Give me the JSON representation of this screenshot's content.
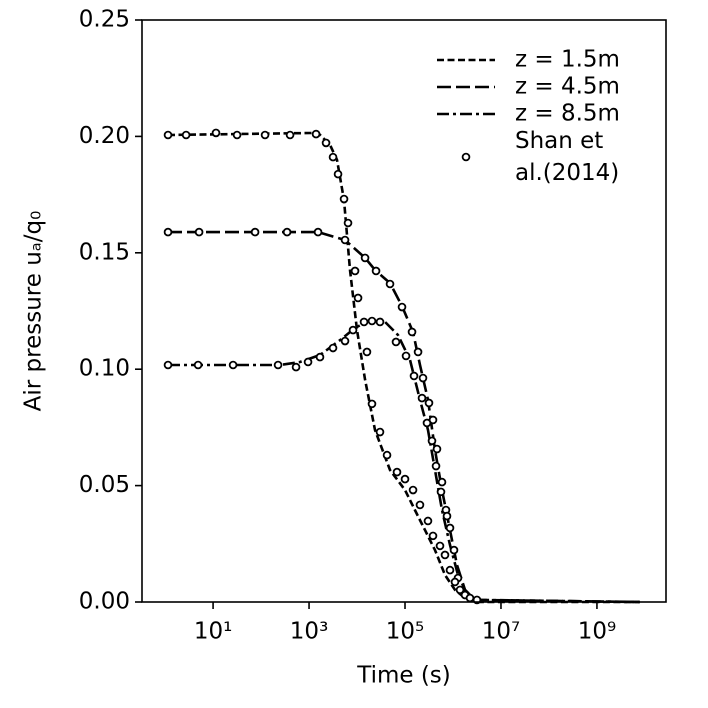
{
  "chart_data": {
    "type": "line",
    "xlabel": "Time (s)",
    "ylabel": "Air pressure uₐ/q₀",
    "xscale": "log",
    "xlim": [
      0.33,
      27500000000.0
    ],
    "ylim": [
      0,
      0.25
    ],
    "xticks": [
      {
        "value": 10,
        "label": "10¹"
      },
      {
        "value": 1000,
        "label": "10³"
      },
      {
        "value": 100000,
        "label": "10⁵"
      },
      {
        "value": 10000000,
        "label": "10⁷"
      },
      {
        "value": 1000000000,
        "label": "10⁹"
      }
    ],
    "yticks": [
      {
        "value": 0,
        "label": "0.00"
      },
      0.05,
      {
        "value": 0.1,
        "label": "0.10"
      },
      0.15,
      {
        "value": 0.2,
        "label": "0.20"
      },
      0.25
    ],
    "legend": "upper right",
    "series": [
      {
        "name": "z = 1.5m",
        "color": "#000000",
        "linestyle": "dashed",
        "x": [
          1.15,
          1540,
          2740,
          3830,
          5360,
          7150,
          10000,
          14700,
          23700,
          48700,
          100000,
          161000,
          261000,
          422000,
          681000,
          1100000,
          1780000,
          3650000,
          7870000000
        ],
        "values": [
          0.2006,
          0.2015,
          0.1963,
          0.1899,
          0.1727,
          0.1426,
          0.1168,
          0.0954,
          0.0739,
          0.0567,
          0.0481,
          0.0395,
          0.0309,
          0.0223,
          0.0116,
          0.0052,
          0.0017,
          0,
          0
        ]
      },
      {
        "name": "z = 4.5m",
        "color": "#000000",
        "linestyle": "long-dashed",
        "x": [
          1.15,
          1540,
          5620,
          14700,
          23700,
          48700,
          86600,
          147000,
          205000,
          301000,
          422000,
          590000,
          866000,
          1210000,
          1780000,
          2870000,
          7870000000
        ],
        "values": [
          0.1589,
          0.1589,
          0.1555,
          0.1478,
          0.1426,
          0.137,
          0.1271,
          0.116,
          0.1018,
          0.0868,
          0.0653,
          0.0481,
          0.0309,
          0.0159,
          0.0052,
          0.0009,
          0
        ]
      },
      {
        "name": "z = 8.5m",
        "color": "#000000",
        "linestyle": "dashdot",
        "x": [
          1.15,
          249,
          649,
          1690,
          4430,
          9090,
          18700,
          38300,
          71500,
          127000,
          205000,
          301000,
          422000,
          590000,
          866000,
          1270000,
          1780000,
          2870000,
          7870000000
        ],
        "values": [
          0.1018,
          0.1018,
          0.1031,
          0.1061,
          0.1125,
          0.1177,
          0.1211,
          0.1203,
          0.1147,
          0.104,
          0.0868,
          0.0739,
          0.0567,
          0.0395,
          0.0245,
          0.0116,
          0.0052,
          0.0009,
          0
        ]
      },
      {
        "name": "Shan et al.(2014)",
        "color": "#000000",
        "linestyle": "none",
        "marker": "o",
        "x": [
          1.15,
          2.74,
          11.5,
          31.6,
          121,
          402,
          1400,
          2260,
          3160,
          4020,
          5360,
          6490,
          9090,
          10500,
          16100,
          20500,
          30100,
          42200,
          68100,
          100000,
          147000,
          205000,
          301000,
          383000,
          536000,
          681000,
          866000,
          1.15,
          5.11,
          75,
          348,
          1540,
          5620,
          14700,
          24900,
          48700,
          86600,
          140000,
          187000,
          237000,
          316000,
          383000,
          464000,
          590000,
          714000,
          866000,
          1050000,
          1270000,
          1.15,
          4.87,
          26.1,
          226,
          536,
          953,
          1690,
          3160,
          5620,
          8250,
          14000,
          20500,
          30100,
          64900,
          105000,
          154000,
          226000,
          287000,
          365000,
          443000,
          562000,
          750000,
          1100000,
          1400000,
          1780000,
          2260000,
          3160000
        ],
        "values": [
          0.2006,
          0.2006,
          0.2015,
          0.2006,
          0.2006,
          0.2006,
          0.201,
          0.1972,
          0.1911,
          0.1838,
          0.1731,
          0.1628,
          0.1422,
          0.1306,
          0.1074,
          0.0851,
          0.073,
          0.0631,
          0.0558,
          0.0528,
          0.0481,
          0.0417,
          0.0348,
          0.0284,
          0.0241,
          0.0202,
          0.0137,
          0.1589,
          0.1589,
          0.1589,
          0.1589,
          0.1589,
          0.1555,
          0.1478,
          0.1422,
          0.1366,
          0.1267,
          0.116,
          0.1074,
          0.0962,
          0.0855,
          0.0782,
          0.0657,
          0.0515,
          0.0395,
          0.0318,
          0.0223,
          0.0103,
          0.1018,
          0.1018,
          0.1018,
          0.1018,
          0.1009,
          0.1031,
          0.1052,
          0.1091,
          0.1121,
          0.1168,
          0.1203,
          0.1207,
          0.1203,
          0.1117,
          0.1057,
          0.0971,
          0.0876,
          0.0769,
          0.0692,
          0.0584,
          0.0473,
          0.0369,
          0.0086,
          0.0052,
          0.003,
          0.0017,
          0.0009
        ]
      }
    ]
  }
}
